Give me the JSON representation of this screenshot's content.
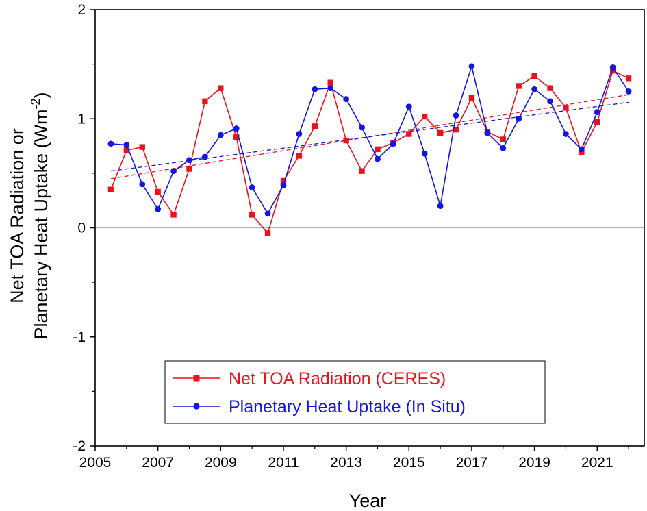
{
  "chart_data": {
    "type": "line",
    "title": "",
    "xlabel": "Year",
    "ylabel_line1": "Net TOA Radiation or",
    "ylabel_line2_prefix": "Planetary Heat Uptake (Wm",
    "ylabel_superscript": "-2",
    "ylabel_suffix": ")",
    "xlim": [
      2005,
      2022.5
    ],
    "ylim": [
      -2,
      2
    ],
    "xticks": [
      2005,
      2007,
      2009,
      2011,
      2013,
      2015,
      2017,
      2019,
      2021
    ],
    "xtick_labels": [
      "2005",
      "2007",
      "2009",
      "2011",
      "2013",
      "2015",
      "2017",
      "2019",
      "2021"
    ],
    "yticks": [
      -2,
      -1,
      0,
      1,
      2
    ],
    "ytick_labels": [
      "-2",
      "-1",
      "0",
      "1",
      "2"
    ],
    "zero_line": true,
    "grid": false,
    "legend_position": "bottom-center",
    "series": [
      {
        "name": "Net TOA Radiation (CERES)",
        "color": "#e8141c",
        "marker": "square",
        "x": [
          2005.5,
          2006,
          2006.5,
          2007,
          2007.5,
          2008,
          2008.5,
          2009,
          2009.5,
          2010,
          2010.5,
          2011,
          2011.5,
          2012,
          2012.5,
          2013,
          2013.5,
          2014,
          2014.5,
          2015,
          2015.5,
          2016,
          2016.5,
          2017,
          2017.5,
          2018,
          2018.5,
          2019,
          2019.5,
          2020,
          2020.5,
          2021,
          2021.5,
          2022
        ],
        "y": [
          0.35,
          0.71,
          0.74,
          0.33,
          0.12,
          0.54,
          1.16,
          1.28,
          0.83,
          0.12,
          -0.05,
          0.43,
          0.66,
          0.93,
          1.33,
          0.8,
          0.52,
          0.72,
          0.78,
          0.86,
          1.02,
          0.87,
          0.9,
          1.19,
          0.88,
          0.81,
          1.3,
          1.39,
          1.28,
          1.1,
          0.69,
          0.97,
          1.44,
          1.37
        ],
        "trend": [
          0.45,
          1.22
        ]
      },
      {
        "name": "Planetary Heat Uptake (In Situ)",
        "color": "#1414e8",
        "marker": "circle",
        "x": [
          2005.5,
          2006,
          2006.5,
          2007,
          2007.5,
          2008,
          2008.5,
          2009,
          2009.5,
          2010,
          2010.5,
          2011,
          2011.5,
          2012,
          2012.5,
          2013,
          2013.5,
          2014,
          2014.5,
          2015,
          2015.5,
          2016,
          2016.5,
          2017,
          2017.5,
          2018,
          2018.5,
          2019,
          2019.5,
          2020,
          2020.5,
          2021,
          2021.5,
          2022
        ],
        "y": [
          0.77,
          0.76,
          0.4,
          0.17,
          0.52,
          0.62,
          0.65,
          0.85,
          0.91,
          0.37,
          0.13,
          0.39,
          0.86,
          1.27,
          1.28,
          1.18,
          0.92,
          0.63,
          0.77,
          1.11,
          0.68,
          0.2,
          1.03,
          1.48,
          0.87,
          0.73,
          1.0,
          1.27,
          1.16,
          0.86,
          0.72,
          1.06,
          1.47,
          1.25
        ],
        "trend": [
          0.52,
          1.15
        ]
      }
    ]
  }
}
